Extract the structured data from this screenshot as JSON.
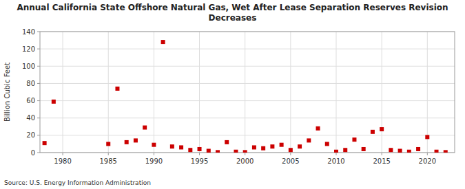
{
  "chart_data": {
    "type": "scatter",
    "title": "Annual California State Offshore Natural Gas, Wet After Lease Separation Reserves Revision\nDecreases",
    "ylabel": "Billion Cubic Feet",
    "source": "Source: U.S. Energy Information Administration",
    "color": "#cc0000",
    "marker": "square",
    "grid": true,
    "xlim": [
      1977.5,
      2023
    ],
    "ylim": [
      0,
      140
    ],
    "xticks": [
      1980,
      1985,
      1990,
      1995,
      2000,
      2005,
      2010,
      2015,
      2020
    ],
    "yticks": [
      0,
      20,
      40,
      60,
      80,
      100,
      120,
      140
    ],
    "x": [
      1978,
      1979,
      1985,
      1986,
      1987,
      1988,
      1989,
      1990,
      1991,
      1992,
      1993,
      1994,
      1995,
      1996,
      1997,
      1998,
      1999,
      2000,
      2001,
      2002,
      2003,
      2004,
      2005,
      2006,
      2007,
      2008,
      2009,
      2010,
      2011,
      2012,
      2013,
      2014,
      2015,
      2016,
      2017,
      2018,
      2019,
      2020,
      2021,
      2022
    ],
    "values": [
      11,
      59,
      10,
      74,
      12,
      14,
      29,
      9,
      128,
      7,
      6,
      3,
      4,
      2,
      0.5,
      12,
      1,
      0.5,
      6,
      5,
      7,
      9,
      3,
      7,
      14,
      28,
      10,
      1,
      3,
      15,
      4,
      24,
      27,
      3,
      2,
      1,
      4,
      18,
      1,
      0.5
    ]
  }
}
